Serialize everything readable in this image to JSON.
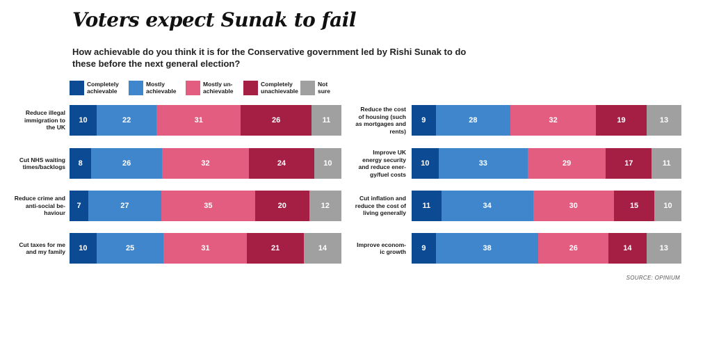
{
  "title": "Voters expect Sunak to fail",
  "subtitle": "How achievable do you think it is for the Conservative government led by Rishi Sunak to do these before the next general election?",
  "source": "SOURCE: OPINIUM",
  "chart_data": {
    "type": "bar",
    "orientation": "horizontal-stacked",
    "title": "Voters expect Sunak to fail",
    "legend_position": "top-left",
    "series": [
      {
        "name": "Completely\nachievable",
        "color": "#0d4a94"
      },
      {
        "name": "Mostly\nachievable",
        "color": "#3f86cd"
      },
      {
        "name": "Mostly un-\nachievable",
        "color": "#e35d80"
      },
      {
        "name": "Completely\nunachievable",
        "color": "#a51f45"
      },
      {
        "name": "Not\nsure",
        "color": "#a0a0a0"
      }
    ],
    "panels": [
      {
        "rows": [
          {
            "label": "Reduce illegal\nimmigration to\nthe UK",
            "values": [
              10,
              22,
              31,
              26,
              11
            ]
          },
          {
            "label": "Cut NHS waiting\ntimes/backlogs",
            "values": [
              8,
              26,
              32,
              24,
              10
            ]
          },
          {
            "label": "Reduce crime and\nanti-social be-\nhaviour",
            "values": [
              7,
              27,
              35,
              20,
              12
            ]
          },
          {
            "label": "Cut taxes for me\nand my family",
            "values": [
              10,
              25,
              31,
              21,
              14
            ]
          }
        ]
      },
      {
        "rows": [
          {
            "label": "Reduce the cost\nof housing (such\nas mortgages and\nrents)",
            "values": [
              9,
              28,
              32,
              19,
              13
            ]
          },
          {
            "label": "Improve UK\nenergy security\nand reduce ener-\ngy/fuel costs",
            "values": [
              10,
              33,
              29,
              17,
              11
            ]
          },
          {
            "label": "Cut inflation and\nreduce the cost of\nliving generally",
            "values": [
              11,
              34,
              30,
              15,
              10
            ]
          },
          {
            "label": "Improve econom-\nic growth",
            "values": [
              9,
              38,
              26,
              14,
              13
            ]
          }
        ]
      }
    ]
  }
}
